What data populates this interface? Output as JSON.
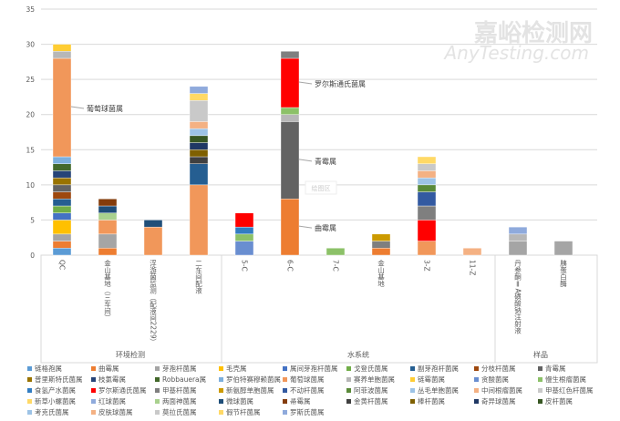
{
  "chart_data": {
    "type": "bar",
    "stacked": true,
    "ylim": [
      0,
      35
    ],
    "yticks": [
      0,
      5,
      10,
      15,
      20,
      25,
      30,
      35
    ],
    "grid": true,
    "legend_position": "bottom",
    "categories": [
      "QC",
      "金山基地（三车间）",
      "浮游菌监测（配液间2229）",
      "二车间配液",
      "5-C",
      "6-C",
      "7-C",
      "金山基地",
      "3-Z",
      "11-Z",
      "丹参酮ⅡA磺酸钠注射液",
      "胰蛋白酶"
    ],
    "groups": [
      {
        "label": "环境检测",
        "count": 4
      },
      {
        "label": "水系统",
        "count": 6
      },
      {
        "label": "样品",
        "count": 2
      }
    ],
    "series": [
      {
        "name": "链格孢属",
        "color": "#5b9bd5"
      },
      {
        "name": "曲霉属",
        "color": "#ed7d31"
      },
      {
        "name": "芽孢杆菌属",
        "color": "#a5a5a5"
      },
      {
        "name": "毛壳属",
        "color": "#ffc000"
      },
      {
        "name": "属间芽孢杆菌属",
        "color": "#4472c4"
      },
      {
        "name": "戈登氏菌属",
        "color": "#70ad47"
      },
      {
        "name": "副芽孢杆菌属",
        "color": "#255e91"
      },
      {
        "name": "分枝杆菌属",
        "color": "#9e480e"
      },
      {
        "name": "青霉属",
        "color": "#636363"
      },
      {
        "name": "普里斯特氏菌属",
        "color": "#997300"
      },
      {
        "name": "枝氯霉属",
        "color": "#264478"
      },
      {
        "name": "Robbauera属",
        "color": "#43682b"
      },
      {
        "name": "罗伯特赛穆赖菌属",
        "color": "#7cafdd"
      },
      {
        "name": "葡萄球菌属",
        "color": "#f1975a"
      },
      {
        "name": "赛养单胞菌属",
        "color": "#b7b7b7"
      },
      {
        "name": "链霉菌属",
        "color": "#ffcd33"
      },
      {
        "name": "贪酸菌属",
        "color": "#698ed0"
      },
      {
        "name": "慢生根瘤菌属",
        "color": "#8cc168"
      },
      {
        "name": "食氢产水菌属",
        "color": "#327dc2"
      },
      {
        "name": "罗尔斯通氏菌属",
        "color": "#ff0000"
      },
      {
        "name": "甲基杆菌属",
        "color": "#7f7f7f"
      },
      {
        "name": "新氨醇单胞菌属",
        "color": "#cc9a00"
      },
      {
        "name": "不动杆菌属",
        "color": "#335aa1"
      },
      {
        "name": "阿菲波菌属",
        "color": "#5a8a39"
      },
      {
        "name": "丛毛单胞菌属",
        "color": "#9dc3e6"
      },
      {
        "name": "中间根瘤菌属",
        "color": "#f4b183"
      },
      {
        "name": "甲基红色杆菌属",
        "color": "#c9c9c9"
      },
      {
        "name": "新草小螺菌属",
        "color": "#ffd966"
      },
      {
        "name": "红球菌属",
        "color": "#8faadc"
      },
      {
        "name": "两面神菌属",
        "color": "#a9d18e"
      },
      {
        "name": "微球菌属",
        "color": "#1f4e79"
      },
      {
        "name": "帚霉属",
        "color": "#843c0c"
      },
      {
        "name": "金黄杆菌属",
        "color": "#404040"
      },
      {
        "name": "棒杆菌属",
        "color": "#7f6000"
      },
      {
        "name": "奇异球菌属",
        "color": "#203864"
      },
      {
        "name": "皮杆菌属",
        "color": "#385723"
      },
      {
        "name": "考克氏菌属",
        "color": "#9dc3e6"
      },
      {
        "name": "皮肤球菌属",
        "color": "#f4b183"
      },
      {
        "name": "莫拉氏菌属",
        "color": "#c9c9c9"
      },
      {
        "name": "假节杆菌属",
        "color": "#ffd966"
      },
      {
        "name": "罗斯氏菌属",
        "color": "#8faadc"
      }
    ],
    "stacks": [
      [
        [
          0,
          1
        ],
        [
          1,
          1
        ],
        [
          2,
          1
        ],
        [
          3,
          2
        ],
        [
          4,
          1
        ],
        [
          5,
          1
        ],
        [
          6,
          1
        ],
        [
          7,
          1
        ],
        [
          8,
          1
        ],
        [
          9,
          1
        ],
        [
          10,
          1
        ],
        [
          11,
          1
        ],
        [
          12,
          1
        ],
        [
          13,
          14
        ],
        [
          14,
          1
        ],
        [
          15,
          1
        ]
      ],
      [
        [
          1,
          1
        ],
        [
          2,
          2
        ],
        [
          13,
          2
        ],
        [
          29,
          1
        ],
        [
          30,
          1
        ],
        [
          31,
          1
        ]
      ],
      [
        [
          13,
          4
        ],
        [
          30,
          1
        ]
      ],
      [
        [
          13,
          10
        ],
        [
          6,
          3
        ],
        [
          32,
          1
        ],
        [
          33,
          1
        ],
        [
          34,
          1
        ],
        [
          35,
          1
        ],
        [
          36,
          1
        ],
        [
          37,
          1
        ],
        [
          38,
          3
        ],
        [
          39,
          1
        ],
        [
          40,
          1
        ]
      ],
      [
        [
          16,
          2
        ],
        [
          17,
          1
        ],
        [
          18,
          1
        ],
        [
          19,
          2
        ]
      ],
      [
        [
          1,
          8
        ],
        [
          8,
          11
        ],
        [
          14,
          1
        ],
        [
          17,
          1
        ],
        [
          19,
          7
        ],
        [
          20,
          1
        ]
      ],
      [
        [
          17,
          1
        ]
      ],
      [
        [
          1,
          1
        ],
        [
          20,
          1
        ],
        [
          21,
          1
        ]
      ],
      [
        [
          13,
          2
        ],
        [
          19,
          3
        ],
        [
          20,
          2
        ],
        [
          22,
          2
        ],
        [
          23,
          1
        ],
        [
          24,
          1
        ],
        [
          25,
          1
        ],
        [
          26,
          1
        ],
        [
          27,
          1
        ]
      ],
      [
        [
          25,
          1
        ]
      ],
      [
        [
          2,
          2
        ],
        [
          14,
          1
        ],
        [
          28,
          1
        ]
      ],
      [
        [
          2,
          2
        ]
      ]
    ],
    "annotations": [
      {
        "text": "葡萄球菌属",
        "category": 0,
        "y": 21
      },
      {
        "text": "罗尔斯通氏菌属",
        "category": 5,
        "y": 24.5
      },
      {
        "text": "青霉属",
        "category": 5,
        "y": 13.5
      },
      {
        "text": "曲霉属",
        "category": 5,
        "y": 4
      }
    ]
  },
  "tooltip": "绘图区",
  "watermark": {
    "line1": "嘉峪检测网",
    "line2": "AnyTesting.com"
  }
}
